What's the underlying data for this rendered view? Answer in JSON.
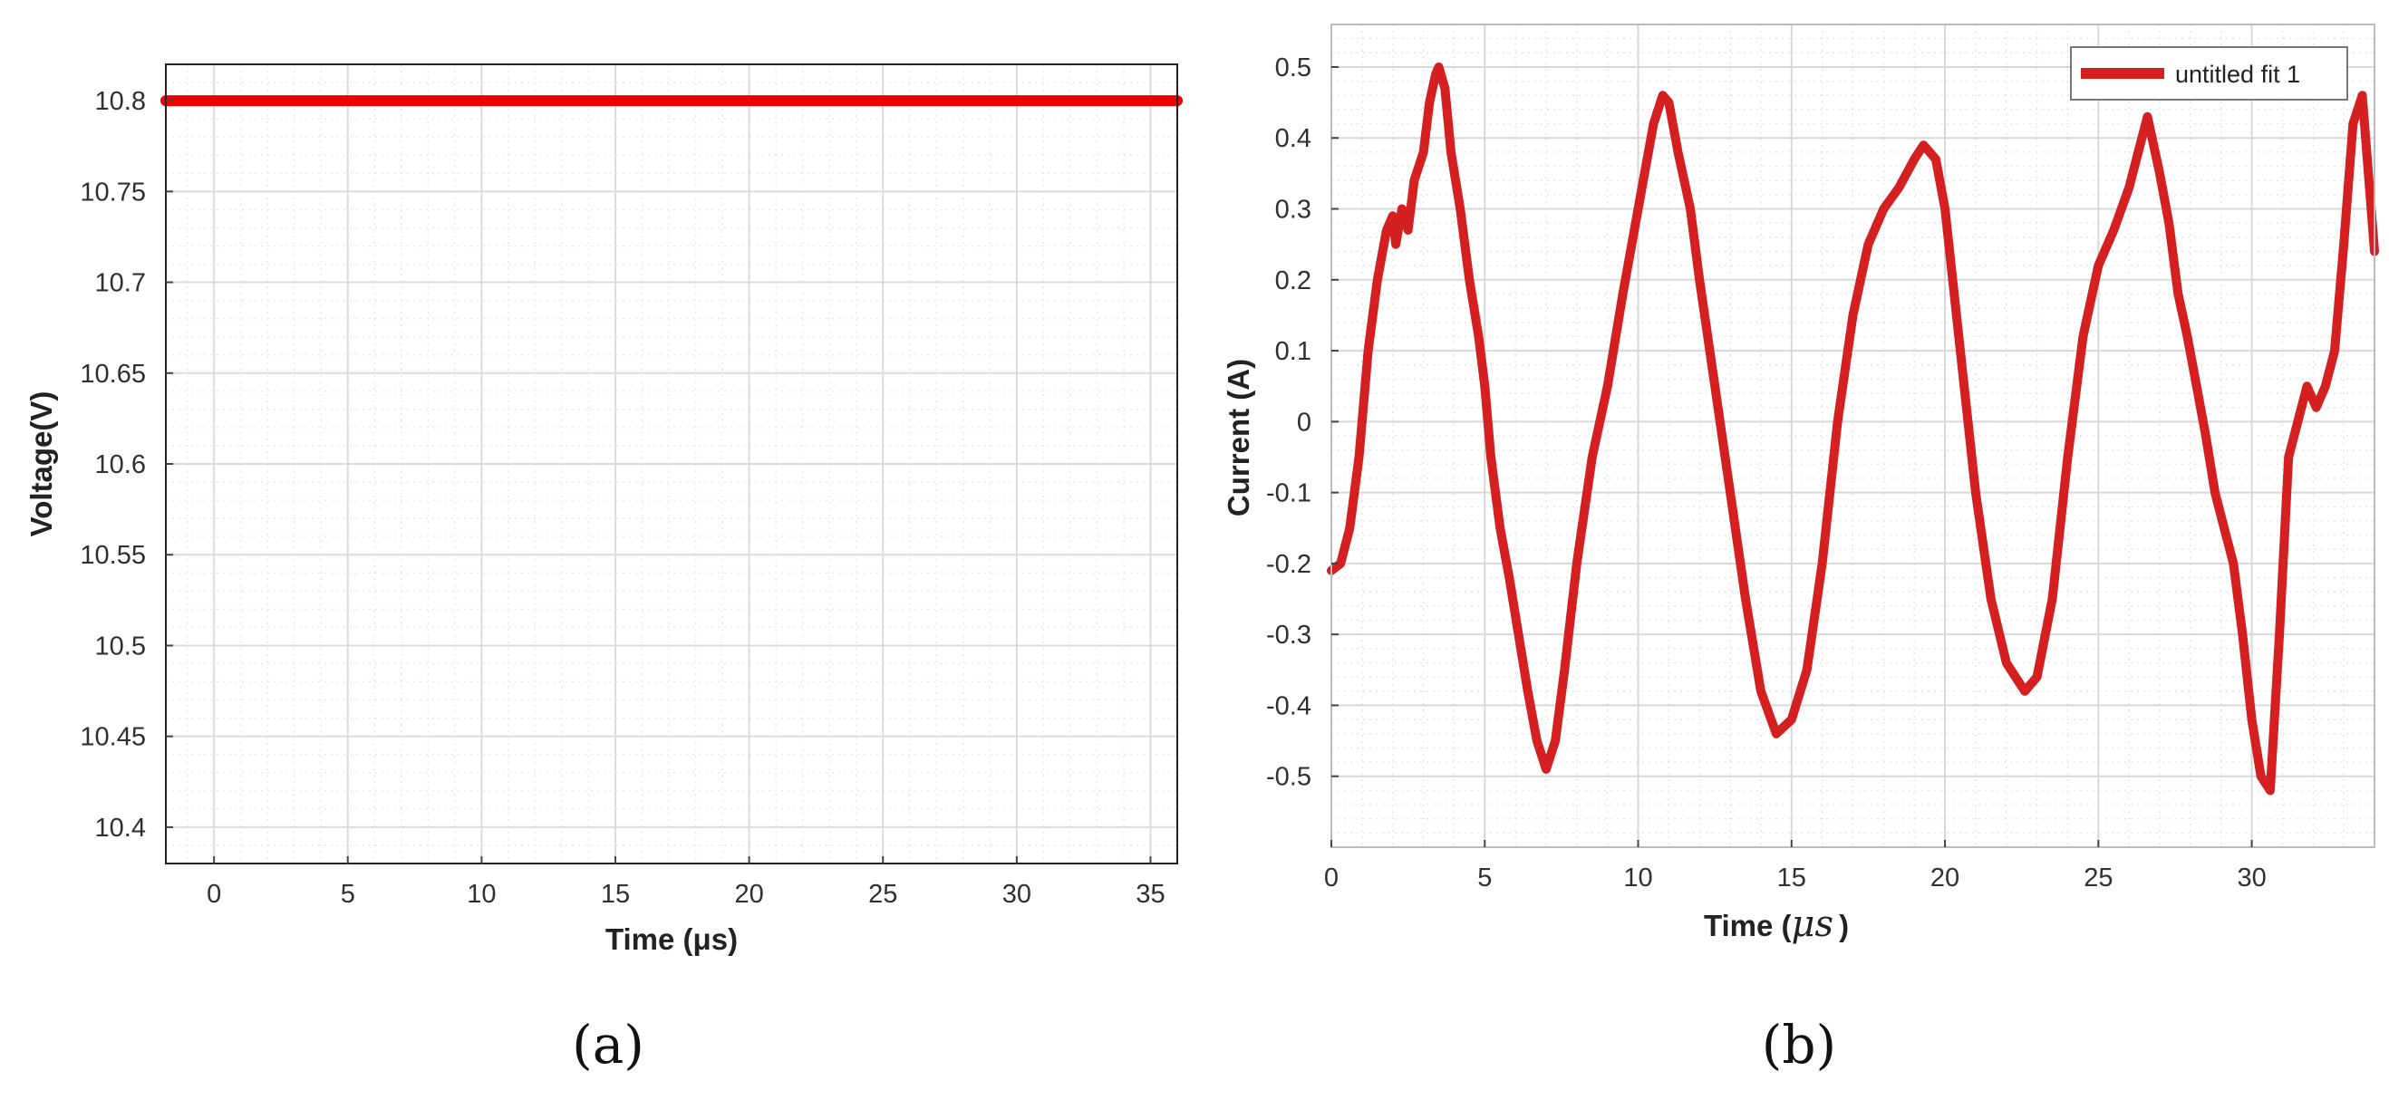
{
  "chart_data": [
    {
      "panel": "(a)",
      "type": "line",
      "title": "",
      "xlabel": "Time (μs)",
      "ylabel": "Voltage(V)",
      "xlim": [
        -1.8,
        36
      ],
      "ylim": [
        10.38,
        10.82
      ],
      "xticks": [
        0,
        5,
        10,
        15,
        20,
        25,
        30,
        35
      ],
      "xtick_labels": [
        "0",
        "5",
        "10",
        "15",
        "20",
        "25",
        "30",
        "35"
      ],
      "yticks": [
        10.4,
        10.45,
        10.5,
        10.55,
        10.6,
        10.65,
        10.7,
        10.75,
        10.8
      ],
      "ytick_labels": [
        "10.4",
        "10.45",
        "10.5",
        "10.55",
        "10.6",
        "10.65",
        "10.7",
        "10.75",
        "10.8"
      ],
      "grid": true,
      "minor_grid": true,
      "legend": false,
      "series": [
        {
          "color": "#ee0000",
          "x": [
            -1.8,
            36
          ],
          "y": [
            10.8,
            10.8
          ]
        }
      ]
    },
    {
      "panel": "(b)",
      "type": "line",
      "title": "",
      "xlabel_prefix": "Time (",
      "xlabel_unit": "μs",
      "xlabel_suffix": ")",
      "ylabel": "Current (A)",
      "xlim": [
        0,
        34
      ],
      "ylim": [
        -0.6,
        0.56
      ],
      "xticks": [
        0,
        5,
        10,
        15,
        20,
        25,
        30
      ],
      "xtick_labels": [
        "0",
        "5",
        "10",
        "15",
        "20",
        "25",
        "30"
      ],
      "yticks": [
        -0.5,
        -0.4,
        -0.3,
        -0.2,
        -0.1,
        0,
        0.1,
        0.2,
        0.3,
        0.4,
        0.5
      ],
      "ytick_labels": [
        "-0.5",
        "-0.4",
        "-0.3",
        "-0.2",
        "-0.1",
        "0",
        "0.1",
        "0.2",
        "0.3",
        "0.4",
        "0.5"
      ],
      "grid": true,
      "minor_grid": true,
      "legend": true,
      "legend_position": "top-right",
      "series": [
        {
          "name": "untitled fit 1",
          "color": "#d42020",
          "x": [
            0,
            0.3,
            0.6,
            0.9,
            1.2,
            1.5,
            1.8,
            2.0,
            2.1,
            2.3,
            2.5,
            2.7,
            3.0,
            3.2,
            3.4,
            3.5,
            3.7,
            3.9,
            4.2,
            4.5,
            4.8,
            5.0,
            5.2,
            5.5,
            5.8,
            6.1,
            6.4,
            6.7,
            7.0,
            7.3,
            7.6,
            8.0,
            8.5,
            9.0,
            9.5,
            10.0,
            10.5,
            10.8,
            11.0,
            11.3,
            11.7,
            12.0,
            12.5,
            13.0,
            13.5,
            14.0,
            14.5,
            15.0,
            15.5,
            16.0,
            16.5,
            17.0,
            17.5,
            18.0,
            18.5,
            19.0,
            19.3,
            19.7,
            20.0,
            20.5,
            21.0,
            21.5,
            22.0,
            22.3,
            22.6,
            23.0,
            23.5,
            24.0,
            24.5,
            25.0,
            25.5,
            26.0,
            26.3,
            26.6,
            27.0,
            27.3,
            27.6,
            27.9,
            28.2,
            28.5,
            28.8,
            29.1,
            29.4,
            29.7,
            30.0,
            30.3,
            30.6,
            30.9,
            31.2,
            31.5,
            31.8,
            32.1,
            32.4,
            32.7,
            33.0,
            33.3,
            33.6,
            34.0
          ],
          "y": [
            -0.21,
            -0.2,
            -0.15,
            -0.05,
            0.1,
            0.2,
            0.27,
            0.29,
            0.25,
            0.3,
            0.27,
            0.34,
            0.38,
            0.45,
            0.49,
            0.5,
            0.47,
            0.38,
            0.3,
            0.2,
            0.12,
            0.05,
            -0.05,
            -0.15,
            -0.22,
            -0.3,
            -0.38,
            -0.45,
            -0.49,
            -0.45,
            -0.35,
            -0.2,
            -0.05,
            0.05,
            0.18,
            0.3,
            0.42,
            0.46,
            0.45,
            0.38,
            0.3,
            0.2,
            0.05,
            -0.1,
            -0.25,
            -0.38,
            -0.44,
            -0.42,
            -0.35,
            -0.2,
            0.0,
            0.15,
            0.25,
            0.3,
            0.33,
            0.37,
            0.39,
            0.37,
            0.3,
            0.1,
            -0.1,
            -0.25,
            -0.34,
            -0.36,
            -0.38,
            -0.36,
            -0.25,
            -0.05,
            0.12,
            0.22,
            0.27,
            0.33,
            0.38,
            0.43,
            0.35,
            0.28,
            0.18,
            0.12,
            0.05,
            -0.02,
            -0.1,
            -0.15,
            -0.2,
            -0.3,
            -0.42,
            -0.5,
            -0.52,
            -0.3,
            -0.05,
            0.0,
            0.05,
            0.02,
            0.05,
            0.1,
            0.25,
            0.42,
            0.46,
            0.24
          ]
        }
      ]
    }
  ]
}
